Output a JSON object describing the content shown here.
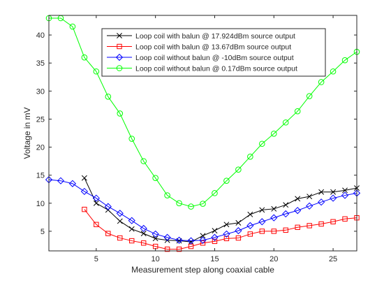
{
  "chart_data": {
    "type": "line",
    "title": "",
    "xlabel": "Measurement step along coaxial cable",
    "ylabel": "Voltage in mV",
    "xlim": [
      1,
      27
    ],
    "ylim": [
      1.5,
      43.5
    ],
    "xticks": [
      5,
      10,
      15,
      20,
      25
    ],
    "yticks": [
      5,
      10,
      15,
      20,
      25,
      30,
      35,
      40
    ],
    "grid": false,
    "legend_position": "top-right",
    "series": [
      {
        "name": "Loop coil with balun @ 17.924dBm source output",
        "color": "#000000",
        "marker": "x",
        "x": [
          4,
          5,
          6,
          7,
          8,
          9,
          10,
          11,
          12,
          13,
          14,
          15,
          16,
          17,
          18,
          19,
          20,
          21,
          22,
          23,
          24,
          25,
          26,
          27
        ],
        "y": [
          14.5,
          10.0,
          8.8,
          6.8,
          5.4,
          4.6,
          3.7,
          3.4,
          3.3,
          3.1,
          4.2,
          5.1,
          6.2,
          6.5,
          8.0,
          8.8,
          9.0,
          9.7,
          10.8,
          11.2,
          12.0,
          12.0,
          12.3,
          12.7
        ]
      },
      {
        "name": "Loop coil with balun @ 13.67dBm source output",
        "color": "#ff0000",
        "marker": "s",
        "x": [
          4,
          5,
          6,
          7,
          8,
          9,
          10,
          11,
          12,
          13,
          14,
          15,
          16,
          17,
          18,
          19,
          20,
          21,
          22,
          23,
          24,
          25,
          26,
          27
        ],
        "y": [
          8.9,
          6.2,
          4.6,
          3.8,
          3.3,
          2.9,
          2.3,
          1.8,
          1.8,
          2.3,
          2.9,
          3.2,
          3.7,
          3.8,
          4.5,
          5.0,
          5.0,
          5.2,
          5.7,
          6.0,
          6.3,
          6.7,
          7.2,
          7.4
        ]
      },
      {
        "name": "Loop coil without balun @ -10dBm source output",
        "color": "#0000ff",
        "marker": "d",
        "x": [
          1,
          2,
          3,
          4,
          5,
          6,
          7,
          8,
          9,
          10,
          11,
          12,
          13,
          14,
          15,
          16,
          17,
          18,
          19,
          20,
          21,
          22,
          23,
          24,
          25,
          26,
          27
        ],
        "y": [
          14.2,
          14.0,
          13.5,
          12.1,
          10.9,
          9.4,
          8.2,
          6.9,
          5.5,
          4.5,
          3.9,
          3.4,
          3.3,
          3.4,
          3.9,
          4.5,
          5.1,
          6.0,
          6.7,
          7.4,
          8.1,
          8.7,
          9.5,
          10.2,
          10.9,
          11.4,
          11.8
        ]
      },
      {
        "name": "Loop coil without balun @ 0.17dBm source output",
        "color": "#00ff00",
        "marker": "o",
        "x": [
          1,
          2,
          3,
          4,
          5,
          6,
          7,
          8,
          9,
          10,
          11,
          12,
          13,
          14,
          15,
          16,
          17,
          18,
          19,
          20,
          21,
          22,
          23,
          24,
          25,
          26,
          27
        ],
        "y": [
          43.0,
          43.0,
          41.5,
          36.0,
          33.5,
          29.0,
          26.0,
          21.5,
          17.5,
          14.5,
          11.4,
          10.0,
          9.4,
          9.9,
          11.8,
          14.0,
          16.0,
          18.3,
          20.6,
          22.4,
          24.4,
          26.4,
          29.1,
          31.6,
          33.5,
          35.5,
          37.0
        ]
      }
    ]
  }
}
